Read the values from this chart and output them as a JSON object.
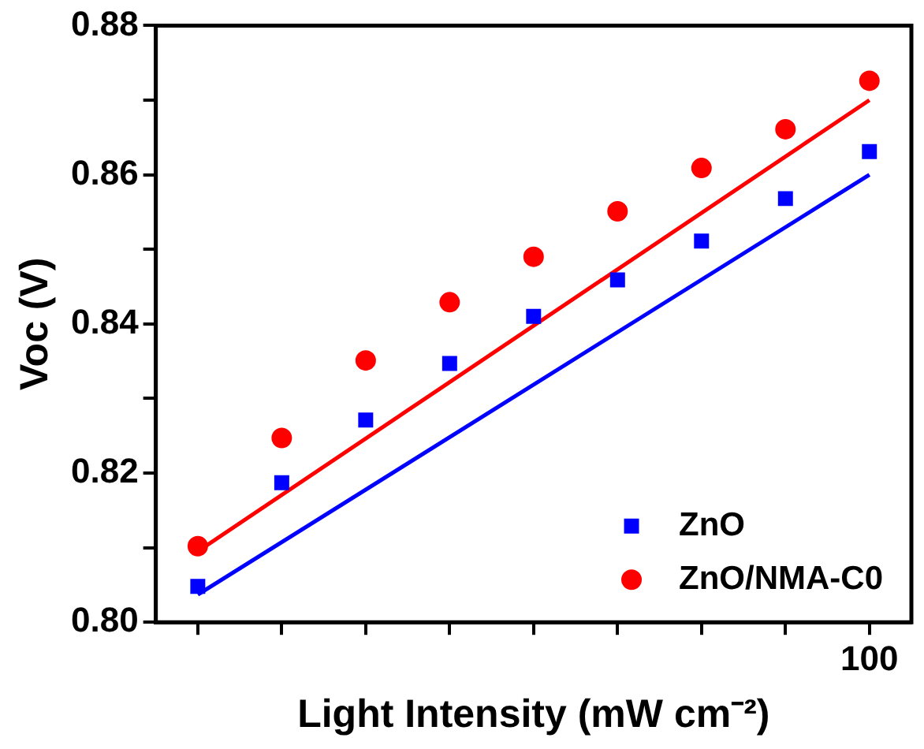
{
  "chart_data": {
    "type": "scatter",
    "xlabel": "Light Intensity (mW cm⁻²)",
    "ylabel": "Voc (V)",
    "categories": [
      null,
      null,
      null,
      null,
      null,
      null,
      null,
      null,
      "100"
    ],
    "ylim": [
      0.8,
      0.88
    ],
    "yticks": [
      {
        "value": 0.8,
        "label": "0.80"
      },
      {
        "value": 0.81,
        "label": null
      },
      {
        "value": 0.82,
        "label": "0.82"
      },
      {
        "value": 0.83,
        "label": null
      },
      {
        "value": 0.84,
        "label": "0.84"
      },
      {
        "value": 0.85,
        "label": null
      },
      {
        "value": 0.86,
        "label": "0.86"
      },
      {
        "value": 0.87,
        "label": null
      },
      {
        "value": 0.88,
        "label": "0.88"
      }
    ],
    "series": [
      {
        "name": "ZnO",
        "color": "#0000ff",
        "marker": "square",
        "values": [
          0.8048,
          0.8187,
          0.8271,
          0.8347,
          0.841,
          0.8459,
          0.8511,
          0.8568,
          0.8631
        ]
      },
      {
        "name": "ZnO/NMA-C0",
        "color": "#ff0000",
        "marker": "circle",
        "values": [
          0.8102,
          0.8247,
          0.8351,
          0.8429,
          0.849,
          0.8551,
          0.8609,
          0.8661,
          0.8726
        ]
      },
      {
        "type": "line",
        "color": "#0000ff",
        "marker": "none",
        "values": [
          0.8037,
          null,
          null,
          null,
          null,
          null,
          null,
          null,
          0.86
        ]
      },
      {
        "type": "line",
        "color": "#ff0000",
        "marker": "none",
        "values": [
          0.8095,
          null,
          null,
          null,
          null,
          null,
          null,
          null,
          0.87
        ]
      }
    ],
    "grid": false,
    "legend": "bottom right"
  }
}
